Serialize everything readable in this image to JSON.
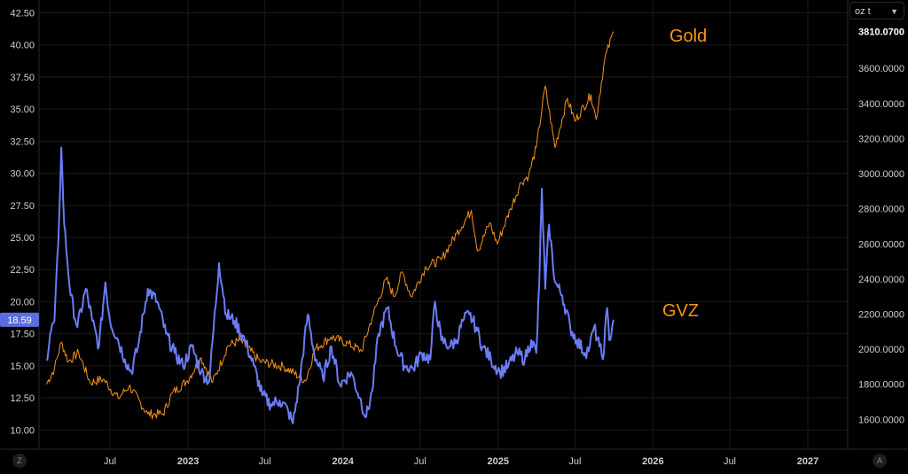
{
  "chart_data": {
    "type": "line",
    "x_labels": [
      "Jul",
      "2023",
      "Jul",
      "2024",
      "Jul",
      "2025",
      "Jul",
      "2026",
      "Jul",
      "2027"
    ],
    "left_axis": {
      "ticks": [
        "42.50",
        "40.00",
        "37.50",
        "35.00",
        "32.50",
        "30.00",
        "27.50",
        "25.00",
        "22.50",
        "20.00",
        "17.50",
        "15.00",
        "12.50",
        "10.00"
      ],
      "range": [
        8.5,
        43.5
      ]
    },
    "right_axis": {
      "unit": "oz t",
      "ticks": [
        "3800.0000",
        "3600.0000",
        "3400.0000",
        "3200.0000",
        "3000.0000",
        "2800.0000",
        "2600.0000",
        "2400.0000",
        "2200.0000",
        "2000.0000",
        "1800.0000",
        "1600.0000"
      ],
      "current_label": "3810.0700",
      "range": [
        1430,
        3990
      ]
    },
    "series": [
      {
        "name": "Gold",
        "axis": "right",
        "color": "#f7931a",
        "current": "3810.0700",
        "points": [
          [
            "2022-02-01",
            1800
          ],
          [
            "2022-02-20",
            1890
          ],
          [
            "2022-03-08",
            2040
          ],
          [
            "2022-03-25",
            1930
          ],
          [
            "2022-04-18",
            1980
          ],
          [
            "2022-05-15",
            1810
          ],
          [
            "2022-06-15",
            1830
          ],
          [
            "2022-07-20",
            1720
          ],
          [
            "2022-08-15",
            1790
          ],
          [
            "2022-09-28",
            1630
          ],
          [
            "2022-11-03",
            1630
          ],
          [
            "2022-11-25",
            1750
          ],
          [
            "2022-12-30",
            1820
          ],
          [
            "2023-02-01",
            1950
          ],
          [
            "2023-02-28",
            1810
          ],
          [
            "2023-04-05",
            2020
          ],
          [
            "2023-05-04",
            2050
          ],
          [
            "2023-06-20",
            1930
          ],
          [
            "2023-08-15",
            1900
          ],
          [
            "2023-10-05",
            1820
          ],
          [
            "2023-10-27",
            2000
          ],
          [
            "2023-12-04",
            2070
          ],
          [
            "2024-01-15",
            2030
          ],
          [
            "2024-02-14",
            1990
          ],
          [
            "2024-03-10",
            2180
          ],
          [
            "2024-04-12",
            2400
          ],
          [
            "2024-05-01",
            2300
          ],
          [
            "2024-05-20",
            2440
          ],
          [
            "2024-06-10",
            2300
          ],
          [
            "2024-07-15",
            2470
          ],
          [
            "2024-08-20",
            2510
          ],
          [
            "2024-09-25",
            2660
          ],
          [
            "2024-10-30",
            2790
          ],
          [
            "2024-11-14",
            2560
          ],
          [
            "2024-12-12",
            2720
          ],
          [
            "2024-12-30",
            2600
          ],
          [
            "2025-01-30",
            2800
          ],
          [
            "2025-02-24",
            2950
          ],
          [
            "2025-03-14",
            2990
          ],
          [
            "2025-04-01",
            3150
          ],
          [
            "2025-04-22",
            3500
          ],
          [
            "2025-05-15",
            3150
          ],
          [
            "2025-06-13",
            3430
          ],
          [
            "2025-07-01",
            3300
          ],
          [
            "2025-08-08",
            3450
          ],
          [
            "2025-08-20",
            3310
          ],
          [
            "2025-09-09",
            3650
          ],
          [
            "2025-09-30",
            3810
          ]
        ]
      },
      {
        "name": "GVZ",
        "axis": "left",
        "color": "#6b7cf5",
        "current": "18.59",
        "points": [
          [
            "2022-02-01",
            15.5
          ],
          [
            "2022-02-10",
            17.5
          ],
          [
            "2022-02-20",
            18.5
          ],
          [
            "2022-03-01",
            24.5
          ],
          [
            "2022-03-08",
            32.0
          ],
          [
            "2022-03-15",
            26.0
          ],
          [
            "2022-03-30",
            20.5
          ],
          [
            "2022-04-15",
            18.0
          ],
          [
            "2022-05-05",
            21.0
          ],
          [
            "2022-05-20",
            18.5
          ],
          [
            "2022-06-05",
            16.5
          ],
          [
            "2022-06-20",
            21.5
          ],
          [
            "2022-07-01",
            18.5
          ],
          [
            "2022-07-20",
            17.0
          ],
          [
            "2022-08-05",
            15.5
          ],
          [
            "2022-08-20",
            14.5
          ],
          [
            "2022-09-05",
            16.5
          ],
          [
            "2022-09-28",
            21.0
          ],
          [
            "2022-10-20",
            20.0
          ],
          [
            "2022-11-10",
            17.5
          ],
          [
            "2022-11-30",
            16.0
          ],
          [
            "2022-12-20",
            15.0
          ],
          [
            "2023-01-10",
            16.5
          ],
          [
            "2023-02-01",
            14.5
          ],
          [
            "2023-02-20",
            13.8
          ],
          [
            "2023-03-15",
            23.0
          ],
          [
            "2023-04-01",
            19.0
          ],
          [
            "2023-04-20",
            18.5
          ],
          [
            "2023-05-15",
            17.0
          ],
          [
            "2023-06-05",
            15.0
          ],
          [
            "2023-06-25",
            12.7
          ],
          [
            "2023-07-15",
            12.0
          ],
          [
            "2023-08-05",
            12.3
          ],
          [
            "2023-08-25",
            11.5
          ],
          [
            "2023-09-05",
            10.5
          ],
          [
            "2023-09-20",
            13.5
          ],
          [
            "2023-10-10",
            19.0
          ],
          [
            "2023-10-25",
            16.0
          ],
          [
            "2023-11-15",
            14.0
          ],
          [
            "2023-12-05",
            16.5
          ],
          [
            "2023-12-25",
            13.5
          ],
          [
            "2024-01-20",
            14.5
          ],
          [
            "2024-02-10",
            12.5
          ],
          [
            "2024-02-25",
            11.0
          ],
          [
            "2024-03-10",
            13.0
          ],
          [
            "2024-03-25",
            17.5
          ],
          [
            "2024-04-15",
            19.5
          ],
          [
            "2024-05-05",
            16.5
          ],
          [
            "2024-05-25",
            15.0
          ],
          [
            "2024-06-15",
            14.8
          ],
          [
            "2024-07-05",
            16.0
          ],
          [
            "2024-07-25",
            15.5
          ],
          [
            "2024-08-05",
            20.0
          ],
          [
            "2024-08-20",
            17.0
          ],
          [
            "2024-09-10",
            16.5
          ],
          [
            "2024-09-25",
            17.0
          ],
          [
            "2024-10-10",
            18.5
          ],
          [
            "2024-10-25",
            19.0
          ],
          [
            "2024-11-10",
            18.0
          ],
          [
            "2024-11-25",
            16.5
          ],
          [
            "2024-12-15",
            15.5
          ],
          [
            "2025-01-05",
            14.5
          ],
          [
            "2025-01-25",
            15.0
          ],
          [
            "2025-02-15",
            16.0
          ],
          [
            "2025-03-05",
            15.5
          ],
          [
            "2025-03-20",
            17.0
          ],
          [
            "2025-04-01",
            16.0
          ],
          [
            "2025-04-08",
            21.5
          ],
          [
            "2025-04-14",
            28.8
          ],
          [
            "2025-04-22",
            21.0
          ],
          [
            "2025-05-01",
            26.0
          ],
          [
            "2025-05-15",
            21.5
          ],
          [
            "2025-06-01",
            20.5
          ],
          [
            "2025-06-20",
            18.0
          ],
          [
            "2025-07-05",
            17.0
          ],
          [
            "2025-07-25",
            16.0
          ],
          [
            "2025-08-05",
            16.5
          ],
          [
            "2025-08-15",
            18.0
          ],
          [
            "2025-08-28",
            16.5
          ],
          [
            "2025-09-05",
            15.5
          ],
          [
            "2025-09-15",
            19.5
          ],
          [
            "2025-09-20",
            17.0
          ],
          [
            "2025-09-30",
            18.59
          ]
        ]
      }
    ]
  },
  "labels": {
    "gold": "Gold",
    "gvz": "GVZ",
    "unit": "oz t",
    "corner_left": "Z",
    "corner_right": "A"
  }
}
